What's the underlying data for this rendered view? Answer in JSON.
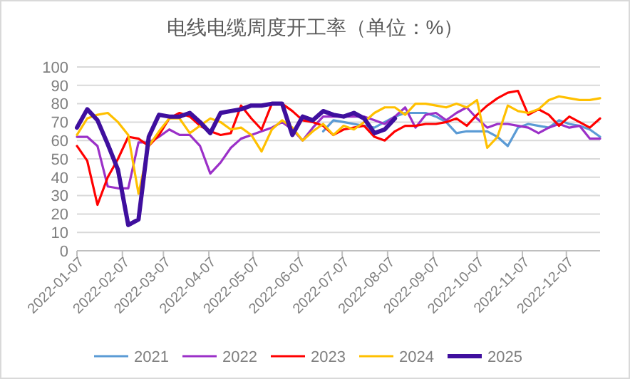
{
  "chart_data": {
    "type": "line",
    "title": "电线电缆周度开工率（单位：%）",
    "x": [
      "2022-01-07",
      "2022-01-14",
      "2022-01-21",
      "2022-01-28",
      "2022-02-04",
      "2022-02-11",
      "2022-02-18",
      "2022-02-25",
      "2022-03-04",
      "2022-03-11",
      "2022-03-18",
      "2022-03-25",
      "2022-04-01",
      "2022-04-08",
      "2022-04-15",
      "2022-04-22",
      "2022-04-29",
      "2022-05-06",
      "2022-05-13",
      "2022-05-20",
      "2022-05-27",
      "2022-06-03",
      "2022-06-10",
      "2022-06-17",
      "2022-06-24",
      "2022-07-01",
      "2022-07-08",
      "2022-07-15",
      "2022-07-22",
      "2022-07-29",
      "2022-08-05",
      "2022-08-12",
      "2022-08-19",
      "2022-08-26",
      "2022-09-02",
      "2022-09-09",
      "2022-09-16",
      "2022-09-23",
      "2022-09-30",
      "2022-10-07",
      "2022-10-14",
      "2022-10-21",
      "2022-10-28",
      "2022-11-04",
      "2022-11-11",
      "2022-11-18",
      "2022-11-25",
      "2022-12-02",
      "2022-12-09",
      "2022-12-16",
      "2022-12-23",
      "2022-12-30"
    ],
    "series": [
      {
        "name": "2021",
        "color": "#5b9bd5",
        "values": [
          null,
          null,
          null,
          null,
          null,
          null,
          null,
          null,
          null,
          null,
          null,
          null,
          null,
          null,
          null,
          null,
          null,
          null,
          null,
          null,
          null,
          null,
          null,
          null,
          65,
          71,
          70,
          69,
          68,
          67,
          70,
          73,
          75,
          75,
          75,
          73,
          70,
          64,
          65,
          65,
          65,
          62,
          57,
          67,
          69,
          68,
          67,
          71,
          69,
          68,
          66,
          62
        ]
      },
      {
        "name": "2022",
        "color": "#9b30c8",
        "values": [
          62,
          62,
          57,
          35,
          34,
          34,
          59,
          59,
          62,
          66,
          63,
          63,
          57,
          42,
          48,
          56,
          61,
          63,
          65,
          67,
          70,
          66,
          60,
          67,
          73,
          73,
          73,
          73,
          73,
          71,
          69,
          73,
          78,
          67,
          74,
          75,
          71,
          75,
          78,
          72,
          67,
          69,
          69,
          68,
          67,
          64,
          67,
          69,
          67,
          68,
          61,
          61
        ]
      },
      {
        "name": "2023",
        "color": "#ff0000",
        "values": [
          57,
          49,
          25,
          40,
          50,
          62,
          61,
          57,
          63,
          72,
          75,
          73,
          68,
          65,
          63,
          64,
          79,
          72,
          66,
          80,
          80,
          76,
          71,
          70,
          68,
          63,
          66,
          67,
          68,
          62,
          60,
          65,
          68,
          68,
          69,
          69,
          70,
          72,
          68,
          74,
          79,
          83,
          86,
          87,
          74,
          77,
          74,
          68,
          73,
          70,
          67,
          72
        ]
      },
      {
        "name": "2024",
        "color": "#ffc000",
        "values": [
          63,
          72,
          74,
          75,
          70,
          63,
          31,
          57,
          65,
          72,
          72,
          64,
          68,
          72,
          70,
          66,
          67,
          63,
          54,
          66,
          71,
          67,
          60,
          65,
          69,
          63,
          68,
          66,
          70,
          75,
          78,
          78,
          74,
          80,
          80,
          79,
          78,
          80,
          78,
          82,
          56,
          62,
          79,
          76,
          75,
          77,
          82,
          84,
          83,
          82,
          82,
          83
        ]
      },
      {
        "name": "2025",
        "color": "#3f0f9e",
        "values": [
          67,
          77,
          71,
          58,
          44,
          14,
          17,
          62,
          74,
          73,
          73,
          75,
          70,
          64,
          75,
          76,
          77,
          79,
          79,
          80,
          80,
          63,
          73,
          71,
          76,
          74,
          73,
          75,
          72,
          64,
          66,
          72,
          null,
          null,
          null,
          null,
          null,
          null,
          null,
          null,
          null,
          null,
          null,
          null,
          null,
          null,
          null,
          null,
          null,
          null,
          null,
          null
        ]
      }
    ],
    "xlim": [
      "2022-01-07",
      "2022-12-30"
    ],
    "xticks": [
      {
        "value": "2022-01-07",
        "label": "2022-01-07"
      },
      {
        "value": "2022-02-07",
        "label": "2022-02-07"
      },
      {
        "value": "2022-03-07",
        "label": "2022-03-07"
      },
      {
        "value": "2022-04-07",
        "label": "2022-04-07"
      },
      {
        "value": "2022-05-07",
        "label": "2022-05-07"
      },
      {
        "value": "2022-06-07",
        "label": "2022-06-07"
      },
      {
        "value": "2022-07-07",
        "label": "2022-07-07"
      },
      {
        "value": "2022-08-07",
        "label": "2022-08-07"
      },
      {
        "value": "2022-09-07",
        "label": "2022-09-07"
      },
      {
        "value": "2022-10-07",
        "label": "2022-10-07"
      },
      {
        "value": "2022-11-07",
        "label": "2022-11-07"
      },
      {
        "value": "2022-12-07",
        "label": "2022-12-07"
      }
    ],
    "ylim": [
      0,
      100
    ],
    "yticks": [
      0,
      10,
      20,
      30,
      40,
      50,
      60,
      70,
      80,
      90,
      100
    ],
    "grid": "y",
    "legend": "bottom",
    "marker": "none",
    "line_style": "solid"
  }
}
